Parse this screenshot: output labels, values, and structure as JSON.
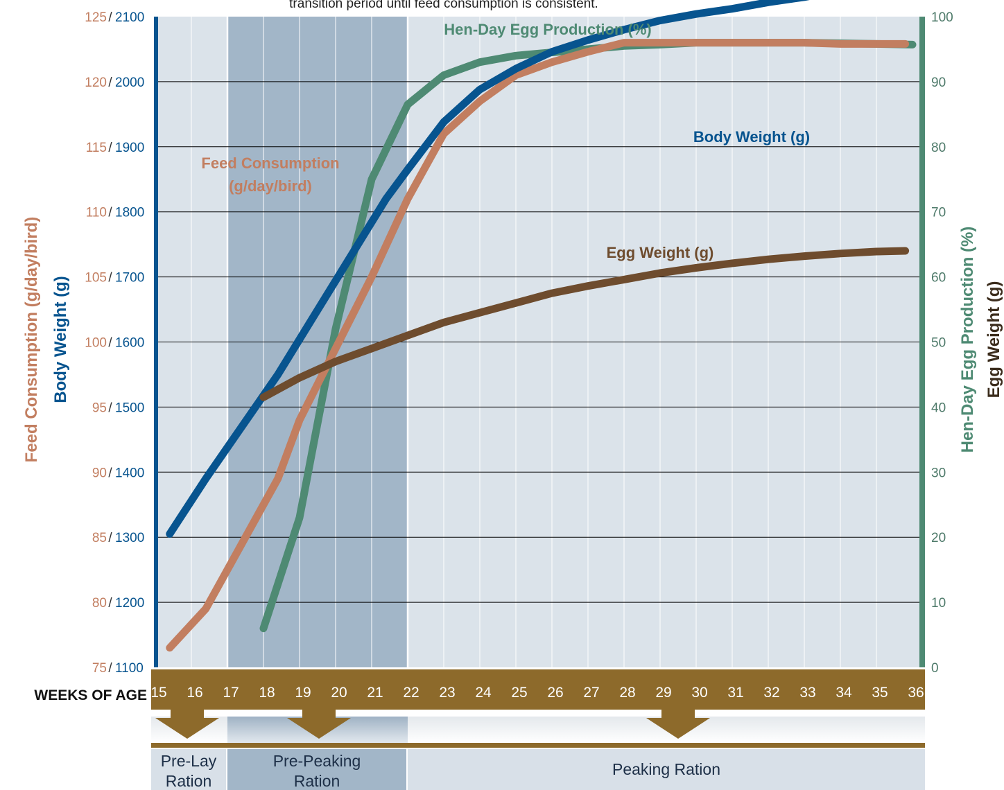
{
  "header_note": "transition period until feed consumption is consistent.",
  "chart_data": {
    "type": "line",
    "x_label": "WEEKS OF AGE",
    "weeks": [
      15,
      16,
      17,
      18,
      19,
      20,
      21,
      22,
      23,
      24,
      25,
      26,
      27,
      28,
      29,
      30,
      31,
      32,
      33,
      34,
      35,
      36
    ],
    "left_axis": {
      "title_feed": "Feed Consumption (g/day/bird)",
      "title_body": "Body Weight (g)",
      "ticks_feed": [
        75,
        80,
        85,
        90,
        95,
        100,
        105,
        110,
        115,
        120,
        125
      ],
      "ticks_body": [
        1100,
        1200,
        1300,
        1400,
        1500,
        1600,
        1700,
        1800,
        1900,
        2000,
        2100
      ],
      "feed_range": [
        75,
        125
      ],
      "body_range": [
        1100,
        2100
      ]
    },
    "right_axis": {
      "title_production": "Hen-Day Egg Production (%)",
      "title_egg": "Egg Weight (g)",
      "ticks": [
        0,
        10,
        20,
        30,
        40,
        50,
        60,
        70,
        80,
        90,
        100
      ],
      "range": [
        0,
        100
      ]
    },
    "series": [
      {
        "name": "Hen-Day Egg Production (%)",
        "axis": "right",
        "color": "#4e8a73",
        "points": [
          [
            18,
            6
          ],
          [
            19,
            23
          ],
          [
            20,
            52
          ],
          [
            21,
            75
          ],
          [
            22,
            86.5
          ],
          [
            23,
            91
          ],
          [
            24,
            93
          ],
          [
            25,
            94
          ],
          [
            26,
            94.5
          ],
          [
            27,
            95
          ],
          [
            28,
            95.5
          ],
          [
            29,
            95.7
          ],
          [
            30,
            96
          ],
          [
            31,
            96
          ],
          [
            32,
            96
          ],
          [
            33,
            96
          ],
          [
            34,
            95.9
          ],
          [
            35,
            95.8
          ],
          [
            36,
            95.7
          ]
        ]
      },
      {
        "name": "Feed Consumption (g/day/bird)",
        "axis": "feed",
        "color": "#c27e60",
        "points": [
          [
            15.4,
            76.5
          ],
          [
            16.4,
            79.5
          ],
          [
            17.4,
            84.5
          ],
          [
            18.4,
            89.5
          ],
          [
            19,
            94
          ],
          [
            20,
            99.5
          ],
          [
            21,
            105
          ],
          [
            22,
            111
          ],
          [
            23,
            116
          ],
          [
            24,
            118.5
          ],
          [
            25,
            120.5
          ],
          [
            26,
            121.5
          ],
          [
            27,
            122.3
          ],
          [
            28,
            123
          ],
          [
            29,
            123
          ],
          [
            30,
            123
          ],
          [
            31,
            123
          ],
          [
            32,
            123
          ],
          [
            33,
            123
          ],
          [
            34,
            122.9
          ],
          [
            35,
            122.9
          ],
          [
            35.8,
            122.9
          ]
        ]
      },
      {
        "name": "Body Weight (g)",
        "axis": "body",
        "color": "#07548f",
        "points": [
          [
            15.4,
            1305
          ],
          [
            16.4,
            1390
          ],
          [
            17.4,
            1470
          ],
          [
            18.4,
            1550
          ],
          [
            19.4,
            1640
          ],
          [
            20.4,
            1730
          ],
          [
            21.4,
            1820
          ],
          [
            22,
            1865
          ],
          [
            23,
            1938
          ],
          [
            24,
            1988
          ],
          [
            25,
            2020
          ],
          [
            26,
            2046
          ],
          [
            27,
            2064
          ],
          [
            28,
            2080
          ],
          [
            29,
            2094
          ],
          [
            30,
            2104
          ],
          [
            31,
            2112
          ],
          [
            32,
            2122
          ],
          [
            33,
            2130
          ],
          [
            34,
            2140
          ],
          [
            35,
            2150
          ],
          [
            35.8,
            2160
          ]
        ]
      },
      {
        "name": "Egg Weight (g)",
        "axis": "right",
        "color": "#6e4c2e",
        "points": [
          [
            18,
            41.5
          ],
          [
            19,
            44.5
          ],
          [
            20,
            47
          ],
          [
            21,
            49
          ],
          [
            22,
            51
          ],
          [
            23,
            53
          ],
          [
            24,
            54.5
          ],
          [
            25,
            56
          ],
          [
            26,
            57.5
          ],
          [
            27,
            58.6
          ],
          [
            28,
            59.6
          ],
          [
            29,
            60.6
          ],
          [
            30,
            61.4
          ],
          [
            31,
            62.1
          ],
          [
            32,
            62.7
          ],
          [
            33,
            63.2
          ],
          [
            34,
            63.6
          ],
          [
            35,
            63.9
          ],
          [
            35.8,
            64
          ]
        ]
      }
    ],
    "series_labels": {
      "production": "Hen-Day Egg Production (%)",
      "feed_line1": "Feed Consumption",
      "feed_line2": "(g/day/bird)",
      "body": "Body Weight (g)",
      "egg": "Egg Weight (g)"
    },
    "rations": [
      {
        "line1": "Pre-Lay",
        "line2": "Ration",
        "from_week": 15,
        "to_week": 17
      },
      {
        "line1": "Pre-Peaking",
        "line2": "Ration",
        "from_week": 17,
        "to_week": 22
      },
      {
        "line1": "Peaking Ration",
        "line2": "",
        "from_week": 22,
        "to_week": 36
      }
    ],
    "colors": {
      "feed": "#c27e60",
      "body": "#07548f",
      "production": "#4e8a73",
      "egg": "#6e4c2e",
      "pre_peaking_band": "#a2b6c8",
      "plot_background": "#dbe3ea",
      "week_bar": "#8d6a2b"
    }
  }
}
